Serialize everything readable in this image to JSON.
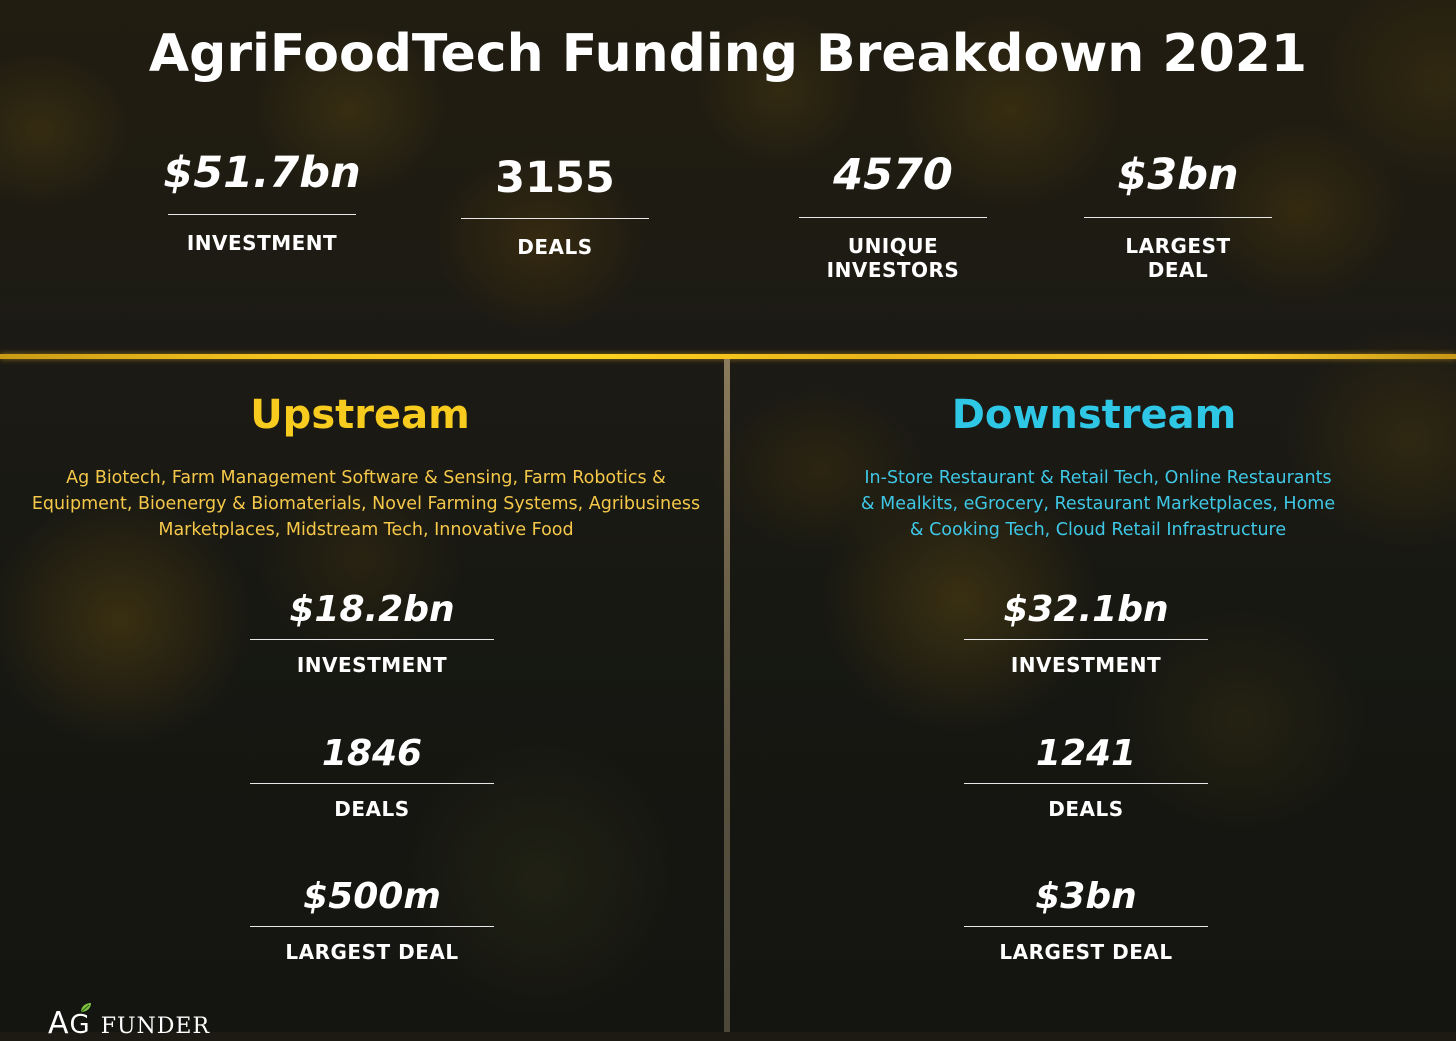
{
  "title": "AgriFoodTech Funding Breakdown 2021",
  "summary": [
    {
      "value": "$51.7bn",
      "label": "INVESTMENT"
    },
    {
      "value": "3155",
      "label": "DEALS"
    },
    {
      "value": "4570",
      "label": "UNIQUE INVESTORS"
    },
    {
      "value": "$3bn",
      "label": "LARGEST DEAL"
    }
  ],
  "upstream": {
    "heading": "Upstream",
    "color": "#f7cc1e",
    "description": "Ag Biotech, Farm Management Software & Sensing, Farm Robotics & Equipment, Bioenergy & Biomaterials, Novel Farming Systems, Agribusiness Marketplaces, Midstream Tech, Innovative Food",
    "stats": [
      {
        "value": "$18.2bn",
        "label": "INVESTMENT"
      },
      {
        "value": "1846",
        "label": "DEALS"
      },
      {
        "value": "$500m",
        "label": "LARGEST DEAL"
      }
    ]
  },
  "downstream": {
    "heading": "Downstream",
    "color": "#2ec7e6",
    "description": "In-Store Restaurant & Retail Tech, Online Restaurants & Mealkits, eGrocery, Restaurant Marketplaces, Home & Cooking Tech, Cloud Retail Infrastructure",
    "stats": [
      {
        "value": "$32.1bn",
        "label": "INVESTMENT"
      },
      {
        "value": "1241",
        "label": "DEALS"
      },
      {
        "value": "$3bn",
        "label": "LARGEST DEAL"
      }
    ]
  },
  "logo": {
    "first": "A",
    "middle": "G",
    "rest": "FUNDER",
    "leaf_color": "#7fc243"
  },
  "colors": {
    "divider": "#f3c21d",
    "text": "#ffffff"
  }
}
